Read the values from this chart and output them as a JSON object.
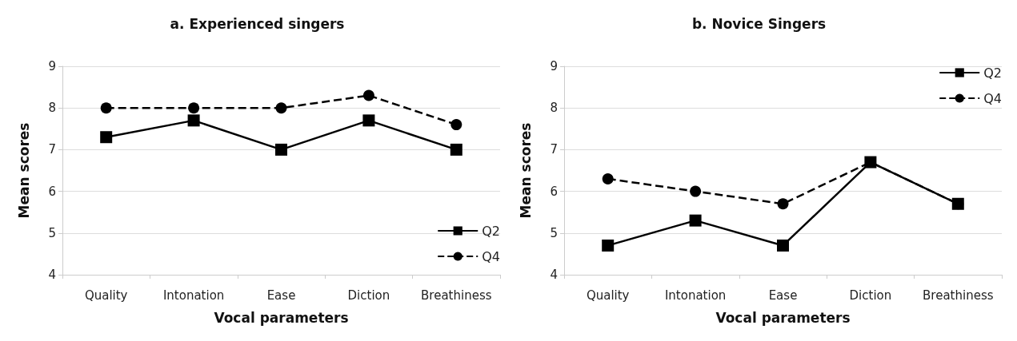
{
  "chart_data": [
    {
      "type": "line",
      "title": "a. Experienced singers",
      "xlabel": "Vocal parameters",
      "ylabel": "Mean scores",
      "categories": [
        "Quality",
        "Intonation",
        "Ease",
        "Diction",
        "Breathiness"
      ],
      "ylim": [
        4,
        9
      ],
      "yticks": [
        4,
        5,
        6,
        7,
        8,
        9
      ],
      "grid": "y",
      "legend": "bottom right",
      "series": [
        {
          "name": "Q2",
          "color": "#000000",
          "marker": "square",
          "line_style": "solid",
          "values": [
            7.3,
            7.7,
            7,
            7.7,
            7
          ]
        },
        {
          "name": "Q4",
          "color": "#000000",
          "marker": "circle",
          "line_style": "dashed",
          "values": [
            8,
            8,
            8,
            8.3,
            7.6
          ]
        }
      ]
    },
    {
      "type": "line",
      "title": "b. Novice Singers",
      "xlabel": "Vocal parameters",
      "ylabel": "Mean scores",
      "categories": [
        "Quality",
        "Intonation",
        "Ease",
        "Diction",
        "Breathiness"
      ],
      "ylim": [
        4,
        9
      ],
      "yticks": [
        4,
        5,
        6,
        7,
        8,
        9
      ],
      "grid": "y",
      "legend": "top right",
      "series": [
        {
          "name": "Q2",
          "color": "#000000",
          "marker": "square",
          "line_style": "solid",
          "values": [
            4.7,
            5.3,
            4.7,
            6.7,
            5.7
          ]
        },
        {
          "name": "Q4",
          "color": "#000000",
          "marker": "circle",
          "line_style": "dashed",
          "values": [
            6.3,
            6,
            5.7,
            6.7,
            5.7
          ]
        }
      ]
    }
  ]
}
